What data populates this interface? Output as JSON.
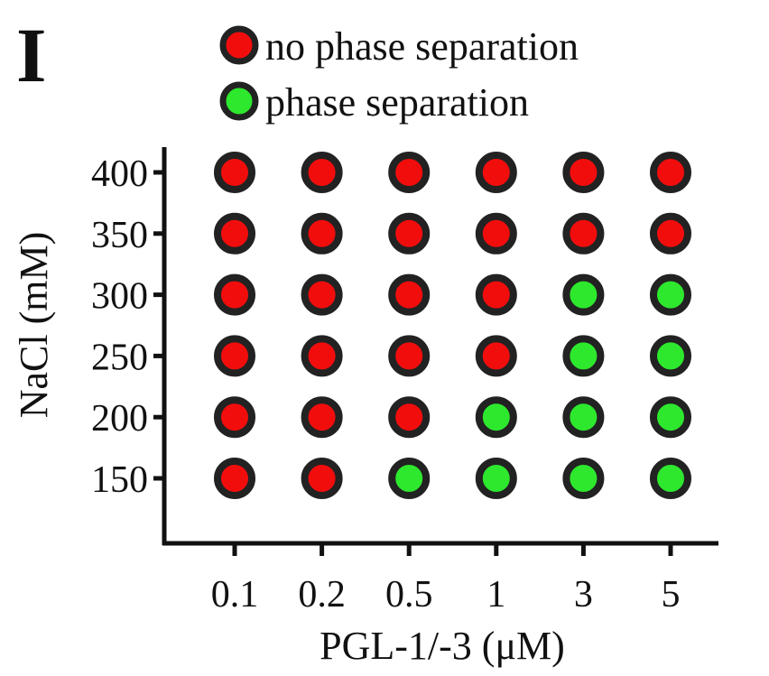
{
  "panel_label": "I",
  "chart_data": {
    "type": "scatter",
    "x_categories": [
      "0.1",
      "0.2",
      "0.5",
      "1",
      "3",
      "5"
    ],
    "y_categories": [
      "150",
      "200",
      "250",
      "300",
      "350",
      "400"
    ],
    "xlabel": "PGL-1/-3 (μM)",
    "ylabel": "NaCl (mM)",
    "legend": {
      "placement": "top",
      "entries": [
        {
          "label": "no phase separation",
          "color": "#f20d0d"
        },
        {
          "label": "phase separation",
          "color": "#2ee82e"
        }
      ]
    },
    "grid": false,
    "outline_color": "#222222",
    "status_by_row": {
      "400": [
        "no phase separation",
        "no phase separation",
        "no phase separation",
        "no phase separation",
        "no phase separation",
        "no phase separation"
      ],
      "350": [
        "no phase separation",
        "no phase separation",
        "no phase separation",
        "no phase separation",
        "no phase separation",
        "no phase separation"
      ],
      "300": [
        "no phase separation",
        "no phase separation",
        "no phase separation",
        "no phase separation",
        "phase separation",
        "phase separation"
      ],
      "250": [
        "no phase separation",
        "no phase separation",
        "no phase separation",
        "no phase separation",
        "phase separation",
        "phase separation"
      ],
      "200": [
        "no phase separation",
        "no phase separation",
        "no phase separation",
        "phase separation",
        "phase separation",
        "phase separation"
      ],
      "150": [
        "no phase separation",
        "no phase separation",
        "phase separation",
        "phase separation",
        "phase separation",
        "phase separation"
      ]
    }
  }
}
